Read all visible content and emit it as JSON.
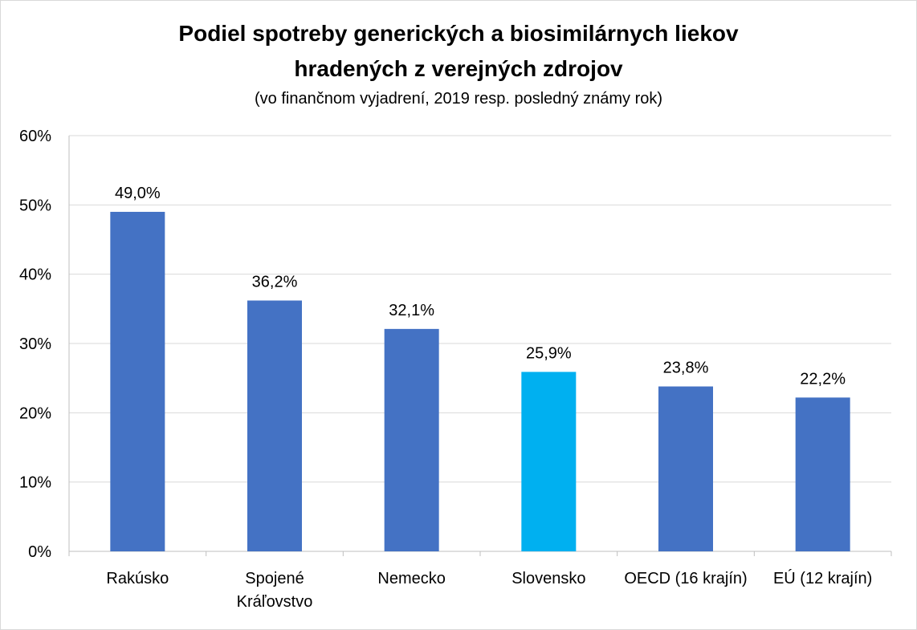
{
  "chart_data": {
    "type": "bar",
    "title_lines": [
      "Podiel spotreby generických a biosimilárnych liekov",
      "hradených z verejných zdrojov"
    ],
    "subtitle": "(vo finančnom vyjadrení, 2019 resp. posledný známy rok)",
    "categories": [
      [
        "Rakúsko"
      ],
      [
        "Spojené",
        "Kráľovstvo"
      ],
      [
        "Nemecko"
      ],
      [
        "Slovensko"
      ],
      [
        "OECD (16 krajín)"
      ],
      [
        "EÚ (12 krajín)"
      ]
    ],
    "values": [
      49.0,
      36.2,
      32.1,
      25.9,
      23.8,
      22.2
    ],
    "data_labels": [
      "49,0%",
      "36,2%",
      "32,1%",
      "25,9%",
      "23,8%",
      "22,2%"
    ],
    "y_ticks": [
      "0%",
      "10%",
      "20%",
      "30%",
      "40%",
      "50%",
      "60%"
    ],
    "ylim": [
      0,
      60
    ],
    "grid": true,
    "legend": "none",
    "colors": {
      "default_bar": "#4472c4",
      "highlight_bar": "#00b0f0",
      "highlight_index": 3,
      "gridline": "#d9d9d9",
      "axis": "#bfbfbf"
    }
  }
}
